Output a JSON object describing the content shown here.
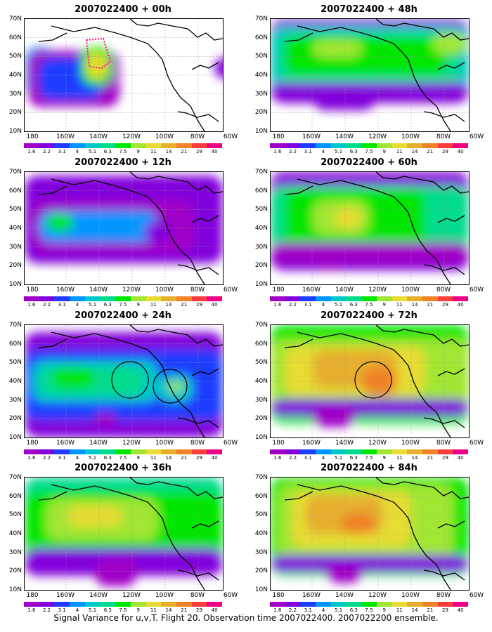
{
  "panels": [
    {
      "title": "2007022400 + 00h",
      "variant": "p00"
    },
    {
      "title": "2007022400 + 48h",
      "variant": "p48"
    },
    {
      "title": "2007022400 + 12h",
      "variant": "p12"
    },
    {
      "title": "2007022400 + 60h",
      "variant": "p60"
    },
    {
      "title": "2007022400 + 24h",
      "variant": "p24"
    },
    {
      "title": "2007022400 + 72h",
      "variant": "p72"
    },
    {
      "title": "2007022400 + 36h",
      "variant": "p36"
    },
    {
      "title": "2007022400 + 84h",
      "variant": "p84"
    }
  ],
  "lat_labels": [
    "70N",
    "60N",
    "50N",
    "40N",
    "30N",
    "20N",
    "10N"
  ],
  "lon_labels": [
    "180",
    "160W",
    "140W",
    "120W",
    "100W",
    "80W",
    "60W"
  ],
  "colorbar": {
    "colors": [
      "#a000c8",
      "#8200dc",
      "#1e3cff",
      "#0096ff",
      "#00c8c8",
      "#00dc8c",
      "#00e600",
      "#a0e632",
      "#e6dc32",
      "#e6af2d",
      "#f08228",
      "#fa3c3c",
      "#f00082"
    ],
    "ticks": [
      "1.6",
      "2.2",
      "3.1",
      "4",
      "5.1",
      "6.3",
      "7.5",
      "9",
      "11",
      "14",
      "21",
      "29",
      "40"
    ]
  },
  "footer": "Signal Variance for u,v,T. Flight 20. Observation time 2007022400. 2007022200 ensemble."
}
